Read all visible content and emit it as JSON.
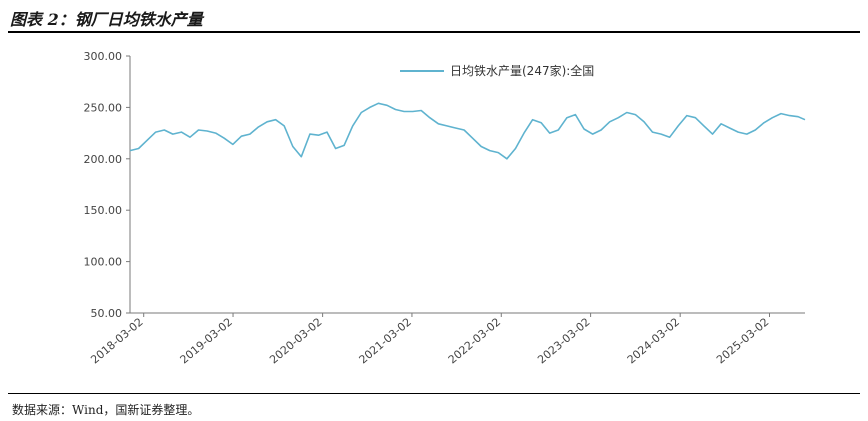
{
  "header": {
    "figure_title": "图表 2：钢厂日均铁水产量"
  },
  "footer": {
    "source": "数据来源：Wind，国新证券整理。"
  },
  "colors": {
    "series": "#5fb3cf",
    "axis": "#7a7a7a",
    "text": "#444444"
  },
  "chart_data": {
    "type": "line",
    "title": "",
    "xlabel": "",
    "ylabel": "",
    "ylim": [
      50,
      300
    ],
    "yticks": [
      "300.00",
      "250.00",
      "200.00",
      "150.00",
      "100.00",
      "50.00"
    ],
    "xticks": [
      "2018-03-02",
      "2019-03-02",
      "2020-03-02",
      "2021-03-02",
      "2022-03-02",
      "2023-03-02",
      "2024-03-02",
      "2025-03-02"
    ],
    "xlim": [
      "2018-01-05",
      "2025-07-25"
    ],
    "grid": false,
    "legend": "top-right",
    "series": [
      {
        "name": "日均铁水产量(247家):全国",
        "x": [
          "2018-01-05",
          "2018-02-09",
          "2018-03-16",
          "2018-04-20",
          "2018-05-25",
          "2018-06-29",
          "2018-08-03",
          "2018-09-07",
          "2018-10-12",
          "2018-11-16",
          "2018-12-21",
          "2019-01-25",
          "2019-03-01",
          "2019-04-05",
          "2019-05-10",
          "2019-06-14",
          "2019-07-19",
          "2019-08-23",
          "2019-09-27",
          "2019-11-01",
          "2019-12-06",
          "2020-01-10",
          "2020-02-14",
          "2020-03-20",
          "2020-04-24",
          "2020-05-29",
          "2020-07-03",
          "2020-08-07",
          "2020-09-11",
          "2020-10-16",
          "2020-11-20",
          "2020-12-25",
          "2021-01-29",
          "2021-03-05",
          "2021-04-09",
          "2021-05-14",
          "2021-06-18",
          "2021-07-23",
          "2021-08-27",
          "2021-10-01",
          "2021-11-05",
          "2021-12-10",
          "2022-01-14",
          "2022-02-18",
          "2022-03-25",
          "2022-04-29",
          "2022-06-03",
          "2022-07-08",
          "2022-08-12",
          "2022-09-16",
          "2022-10-21",
          "2022-11-25",
          "2022-12-30",
          "2023-02-03",
          "2023-03-10",
          "2023-04-14",
          "2023-05-19",
          "2023-06-23",
          "2023-07-28",
          "2023-09-01",
          "2023-10-06",
          "2023-11-10",
          "2023-12-15",
          "2024-01-19",
          "2024-02-23",
          "2024-03-29",
          "2024-05-03",
          "2024-06-07",
          "2024-07-12",
          "2024-08-16",
          "2024-09-20",
          "2024-10-25",
          "2024-11-29",
          "2025-01-03",
          "2025-02-07",
          "2025-03-14",
          "2025-04-18",
          "2025-05-23",
          "2025-06-27",
          "2025-07-25"
        ],
        "y": [
          208,
          210,
          218,
          226,
          228,
          224,
          226,
          221,
          228,
          227,
          225,
          220,
          214,
          222,
          224,
          231,
          236,
          238,
          232,
          212,
          202,
          224,
          223,
          226,
          210,
          213,
          232,
          245,
          250,
          254,
          252,
          248,
          246,
          246,
          247,
          240,
          234,
          232,
          230,
          228,
          220,
          212,
          208,
          206,
          200,
          210,
          225,
          238,
          235,
          225,
          228,
          240,
          243,
          229,
          224,
          228,
          236,
          240,
          245,
          243,
          236,
          226,
          224,
          221,
          232,
          242,
          240,
          232,
          224,
          234,
          230,
          226,
          224,
          228,
          235,
          240,
          244,
          242,
          241,
          238
        ]
      }
    ]
  }
}
